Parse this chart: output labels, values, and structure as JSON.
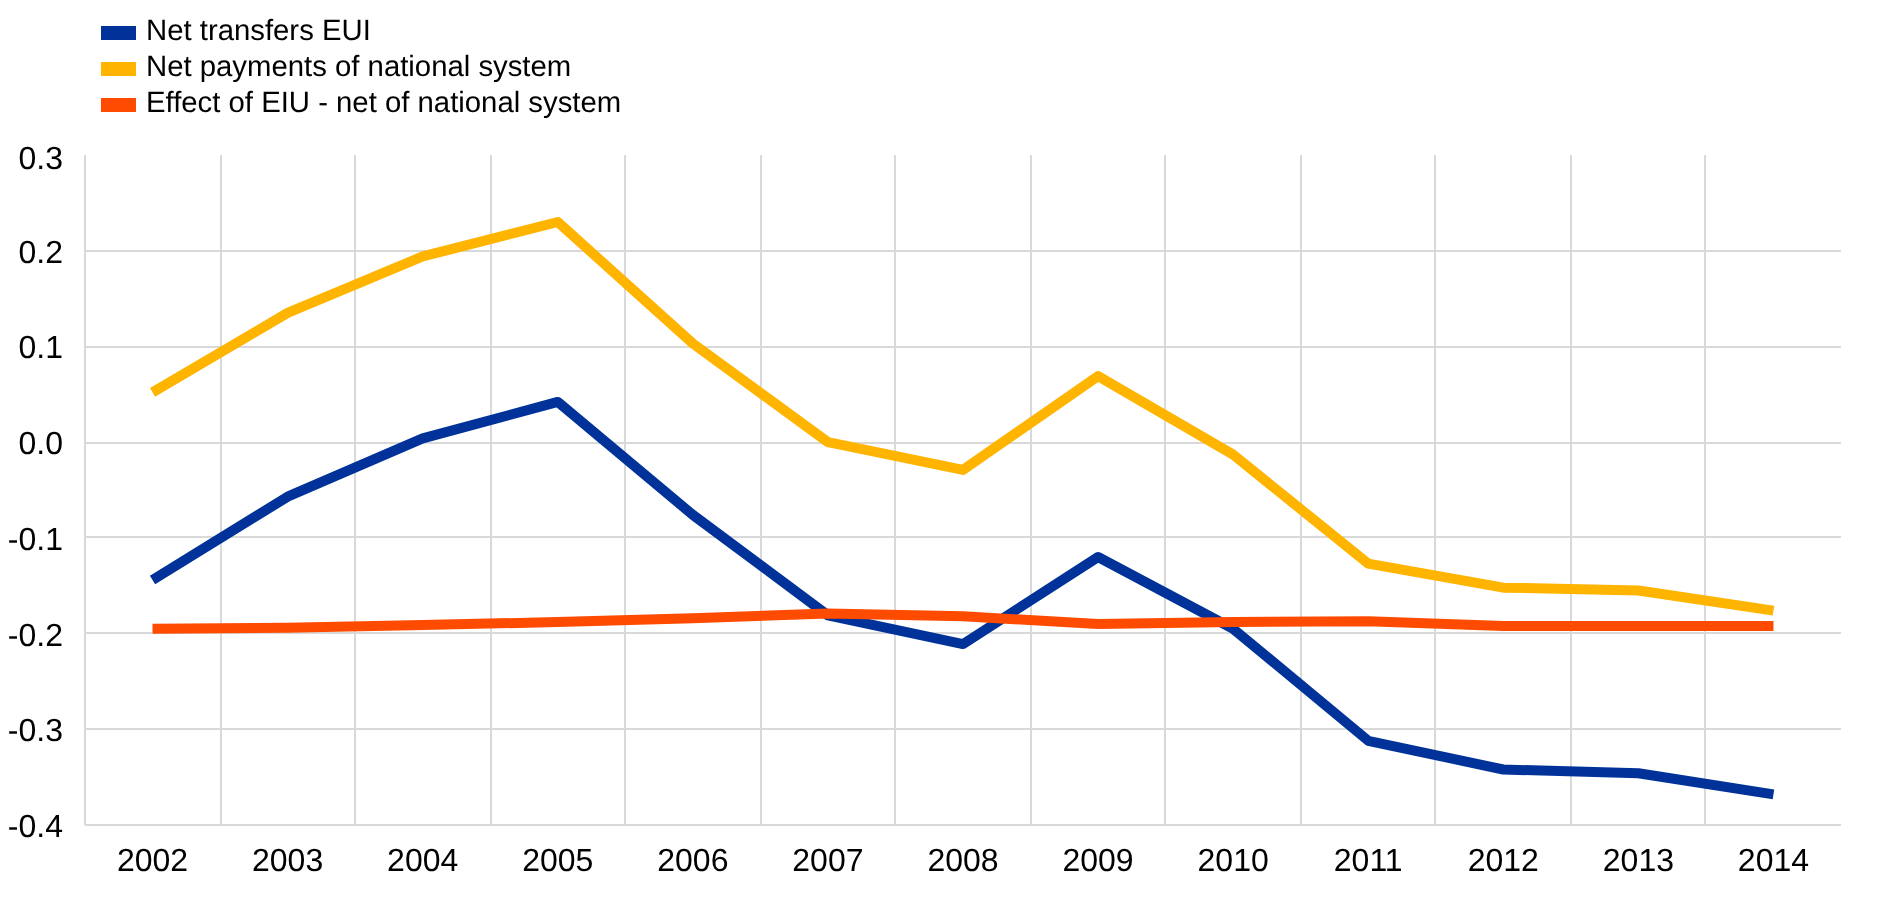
{
  "chart_data": {
    "type": "line",
    "categories": [
      "2002",
      "2003",
      "2004",
      "2005",
      "2006",
      "2007",
      "2008",
      "2009",
      "2010",
      "2011",
      "2012",
      "2013",
      "2014"
    ],
    "series": [
      {
        "name": "Net transfers EUI",
        "color": "#003299",
        "values": [
          -0.144,
          -0.057,
          0.004,
          0.042,
          -0.076,
          -0.181,
          -0.211,
          -0.12,
          -0.195,
          -0.312,
          -0.342,
          -0.346,
          -0.368
        ]
      },
      {
        "name": "Net payments of national system",
        "color": "#ffb400",
        "values": [
          0.052,
          0.135,
          0.194,
          0.23,
          0.103,
          0.0,
          -0.029,
          0.069,
          -0.013,
          -0.127,
          -0.152,
          -0.155,
          -0.176
        ]
      },
      {
        "name": "Effect of EIU - net of national system",
        "color": "#ff4b00",
        "values": [
          -0.195,
          -0.194,
          -0.191,
          -0.188,
          -0.184,
          -0.179,
          -0.182,
          -0.19,
          -0.188,
          -0.187,
          -0.192,
          -0.192,
          -0.192
        ]
      }
    ],
    "ylim": [
      -0.4,
      0.3
    ],
    "yticks": [
      {
        "value": -0.4,
        "label": "-0.4"
      },
      {
        "value": -0.3,
        "label": "-0.3"
      },
      {
        "value": -0.2,
        "label": "-0.2"
      },
      {
        "value": -0.1,
        "label": "-0.1"
      },
      {
        "value": 0,
        "label": "0.0"
      },
      {
        "value": 0.1,
        "label": "0.1"
      },
      {
        "value": 0.2,
        "label": "0.2"
      },
      {
        "value": 0.3,
        "label": "0.3"
      }
    ],
    "grid": true,
    "legend": "top left",
    "line_style": "solid"
  }
}
